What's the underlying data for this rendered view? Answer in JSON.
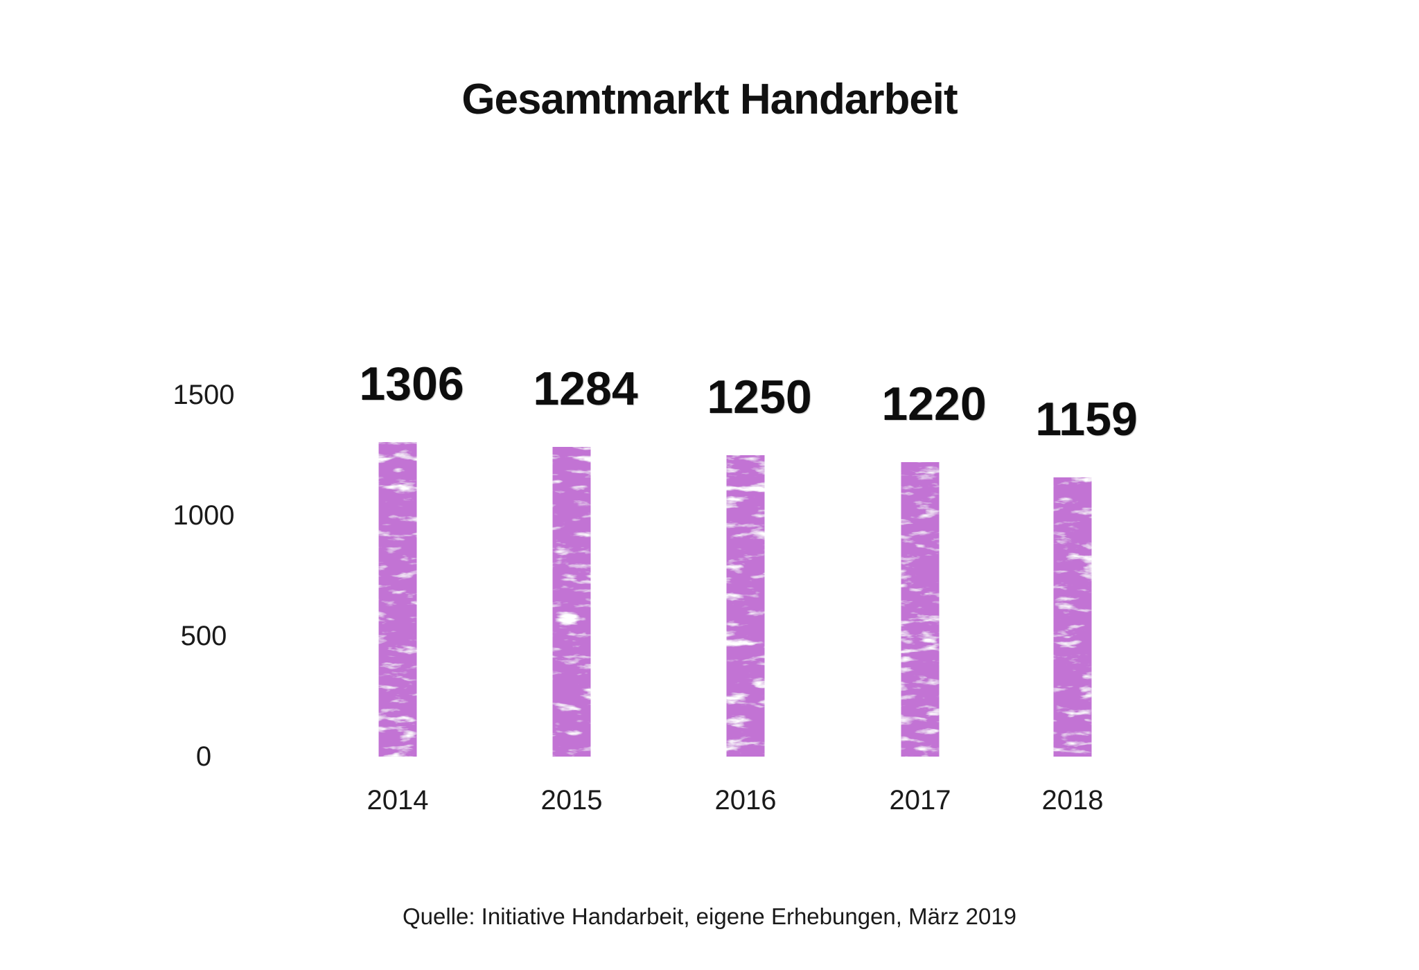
{
  "chart": {
    "title": "Gesamtmarkt Handarbeit",
    "source": "Quelle: Initiative Handarbeit, eigene Erhebungen, März 2019"
  },
  "chart_data": {
    "type": "bar",
    "title": "Gesamtmarkt Handarbeit",
    "categories": [
      "2014",
      "2015",
      "2016",
      "2017",
      "2018"
    ],
    "values": [
      1306,
      1284,
      1250,
      1220,
      1159
    ],
    "data_labels": [
      "1306",
      "1284",
      "1250",
      "1220",
      "1159"
    ],
    "xlabel": "",
    "ylabel": "",
    "ylim": [
      0,
      1500
    ],
    "yticks": [
      0,
      500,
      1000,
      1500
    ],
    "ytick_labels": [
      "0",
      "500",
      "1000",
      "1500"
    ],
    "grid": false,
    "legend": "none",
    "axis_lines": "none",
    "bar_color": "#c273d4",
    "bar_texture": "chalk-speckle-white",
    "text_color": "#1a1a1a",
    "background": "#ffffff",
    "source": "Quelle: Initiative Handarbeit, eigene Erhebungen, März 2019"
  }
}
